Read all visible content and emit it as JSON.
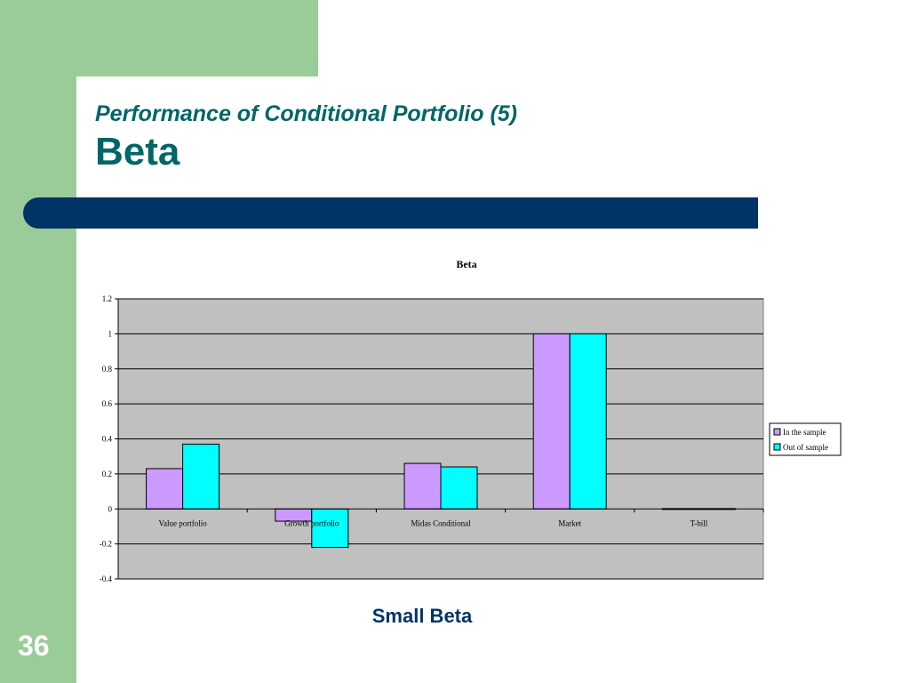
{
  "slide": {
    "subtitle": "Performance of Conditional Portfolio (5)",
    "title": "Beta",
    "number": "36",
    "caption": "Small Beta"
  },
  "colors": {
    "green_band": "#99cc99",
    "title_teal": "#006666",
    "navy": "#003366",
    "plot_bg": "#c0c0c0",
    "series_in": "#cc99ff",
    "series_out": "#00ffff"
  },
  "chart_data": {
    "type": "bar",
    "title": "Beta",
    "categories": [
      "Value portfolio",
      "Growth portfolio",
      "Midas Conditional",
      "Market",
      "T-bill"
    ],
    "series": [
      {
        "name": "In the sample",
        "values": [
          0.23,
          -0.07,
          0.26,
          1.0,
          0.002
        ],
        "color": "#cc99ff"
      },
      {
        "name": "Out of sample",
        "values": [
          0.37,
          -0.22,
          0.24,
          1.0,
          0.002
        ],
        "color": "#00ffff"
      }
    ],
    "ylim": [
      -0.4,
      1.2
    ],
    "yticks": [
      "-0.4",
      "-0.2",
      "0",
      "0.2",
      "0.4",
      "0.6",
      "0.8",
      "1",
      "1.2"
    ],
    "grid": true,
    "legend": "right"
  }
}
